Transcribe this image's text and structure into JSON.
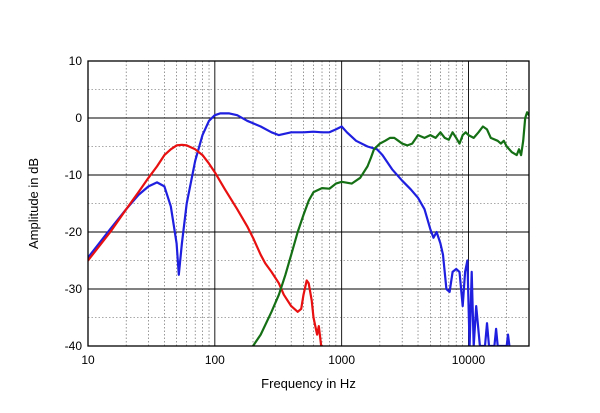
{
  "chart_data": {
    "type": "line",
    "xscale": "log",
    "xlim": [
      10,
      30000
    ],
    "ylim": [
      -40,
      10
    ],
    "xlabel": "Frequency  in  Hz",
    "ylabel": "Amplitude  in  dB",
    "grid": true,
    "x_ticks": [
      10,
      100,
      1000,
      10000
    ],
    "x_tick_labels": [
      "10",
      "100",
      "1000",
      "10000"
    ],
    "y_ticks": [
      10,
      0,
      -10,
      -20,
      -30,
      -40
    ],
    "y_tick_labels": [
      "10",
      "0",
      "-10",
      "-20",
      "-30",
      "-40"
    ],
    "series": [
      {
        "color": "#1f1fe0",
        "points": [
          [
            10,
            -24.5
          ],
          [
            15,
            -19.5
          ],
          [
            20,
            -16
          ],
          [
            25,
            -13.5
          ],
          [
            30,
            -12
          ],
          [
            35,
            -11.3
          ],
          [
            40,
            -12
          ],
          [
            45,
            -15.5
          ],
          [
            50,
            -22
          ],
          [
            52,
            -27.5
          ],
          [
            55,
            -22
          ],
          [
            60,
            -15
          ],
          [
            70,
            -7.5
          ],
          [
            80,
            -3
          ],
          [
            90,
            -0.5
          ],
          [
            100,
            0.5
          ],
          [
            110,
            0.8
          ],
          [
            130,
            0.8
          ],
          [
            150,
            0.5
          ],
          [
            180,
            -0.5
          ],
          [
            230,
            -1.5
          ],
          [
            280,
            -2.5
          ],
          [
            320,
            -3
          ],
          [
            400,
            -2.5
          ],
          [
            500,
            -2.5
          ],
          [
            600,
            -2.4
          ],
          [
            700,
            -2.5
          ],
          [
            800,
            -2.5
          ],
          [
            900,
            -2
          ],
          [
            1000,
            -1.5
          ],
          [
            1100,
            -2.5
          ],
          [
            1300,
            -4
          ],
          [
            1600,
            -5
          ],
          [
            1900,
            -5.5
          ],
          [
            2100,
            -6.5
          ],
          [
            2500,
            -9
          ],
          [
            3000,
            -11
          ],
          [
            3500,
            -12.5
          ],
          [
            4000,
            -14
          ],
          [
            4500,
            -16
          ],
          [
            5000,
            -19.5
          ],
          [
            5300,
            -21
          ],
          [
            5600,
            -20
          ],
          [
            6000,
            -22
          ],
          [
            6300,
            -24
          ],
          [
            6700,
            -30
          ],
          [
            7100,
            -30.5
          ],
          [
            7500,
            -27
          ],
          [
            8000,
            -26.5
          ],
          [
            8500,
            -27
          ],
          [
            9000,
            -33
          ],
          [
            9400,
            -27
          ],
          [
            9800,
            -25
          ],
          [
            10200,
            -40
          ],
          [
            10600,
            -27
          ],
          [
            11000,
            -40
          ],
          [
            11500,
            -33
          ],
          [
            12300,
            -40
          ],
          [
            13500,
            -40
          ],
          [
            14000,
            -36
          ],
          [
            14500,
            -40
          ],
          [
            16000,
            -40
          ],
          [
            16500,
            -37
          ],
          [
            17000,
            -40
          ],
          [
            20000,
            -40
          ],
          [
            20500,
            -38
          ],
          [
            21000,
            -40
          ]
        ]
      },
      {
        "color": "#e81010",
        "points": [
          [
            10,
            -25
          ],
          [
            15,
            -20
          ],
          [
            20,
            -16
          ],
          [
            25,
            -13
          ],
          [
            30,
            -10.5
          ],
          [
            35,
            -8.5
          ],
          [
            40,
            -6.5
          ],
          [
            45,
            -5.5
          ],
          [
            50,
            -4.8
          ],
          [
            55,
            -4.7
          ],
          [
            60,
            -4.8
          ],
          [
            70,
            -5.5
          ],
          [
            80,
            -6.5
          ],
          [
            90,
            -8
          ],
          [
            100,
            -9.5
          ],
          [
            120,
            -12.5
          ],
          [
            150,
            -16
          ],
          [
            180,
            -19
          ],
          [
            200,
            -21
          ],
          [
            230,
            -24
          ],
          [
            250,
            -25.5
          ],
          [
            280,
            -27
          ],
          [
            320,
            -29
          ],
          [
            350,
            -31
          ],
          [
            400,
            -33
          ],
          [
            450,
            -34
          ],
          [
            480,
            -33.5
          ],
          [
            500,
            -31
          ],
          [
            530,
            -28.5
          ],
          [
            550,
            -29
          ],
          [
            580,
            -32
          ],
          [
            600,
            -35
          ],
          [
            640,
            -38
          ],
          [
            660,
            -36.5
          ],
          [
            690,
            -40
          ],
          [
            700,
            -40
          ]
        ]
      },
      {
        "color": "#157015",
        "points": [
          [
            200,
            -40
          ],
          [
            230,
            -38
          ],
          [
            280,
            -34
          ],
          [
            320,
            -31
          ],
          [
            360,
            -27.5
          ],
          [
            400,
            -24
          ],
          [
            450,
            -20
          ],
          [
            500,
            -17
          ],
          [
            550,
            -14.5
          ],
          [
            600,
            -13
          ],
          [
            700,
            -12.3
          ],
          [
            800,
            -12.4
          ],
          [
            900,
            -11.5
          ],
          [
            1000,
            -11.2
          ],
          [
            1200,
            -11.5
          ],
          [
            1400,
            -10.5
          ],
          [
            1600,
            -8.5
          ],
          [
            1700,
            -7
          ],
          [
            1800,
            -5.5
          ],
          [
            2000,
            -4.5
          ],
          [
            2200,
            -4
          ],
          [
            2400,
            -3.5
          ],
          [
            2600,
            -3.5
          ],
          [
            2800,
            -4
          ],
          [
            3000,
            -4.5
          ],
          [
            3300,
            -4.8
          ],
          [
            3600,
            -4.5
          ],
          [
            4000,
            -3
          ],
          [
            4500,
            -3.5
          ],
          [
            5000,
            -3
          ],
          [
            5500,
            -3.5
          ],
          [
            6000,
            -2.5
          ],
          [
            6500,
            -3.5
          ],
          [
            7000,
            -3.8
          ],
          [
            7500,
            -2.5
          ],
          [
            8000,
            -3.5
          ],
          [
            8500,
            -4.5
          ],
          [
            9000,
            -3
          ],
          [
            9500,
            -2.5
          ],
          [
            10000,
            -3
          ],
          [
            11000,
            -3.5
          ],
          [
            12000,
            -2.5
          ],
          [
            13000,
            -1.5
          ],
          [
            14000,
            -2
          ],
          [
            15000,
            -3.5
          ],
          [
            17000,
            -4
          ],
          [
            18000,
            -4.5
          ],
          [
            19000,
            -4
          ],
          [
            20000,
            -5
          ],
          [
            22000,
            -6
          ],
          [
            24000,
            -6.5
          ],
          [
            25000,
            -5.5
          ],
          [
            26000,
            -6.5
          ],
          [
            27000,
            -4
          ],
          [
            28000,
            0
          ],
          [
            29000,
            1
          ],
          [
            30000,
            0.5
          ]
        ]
      }
    ]
  }
}
